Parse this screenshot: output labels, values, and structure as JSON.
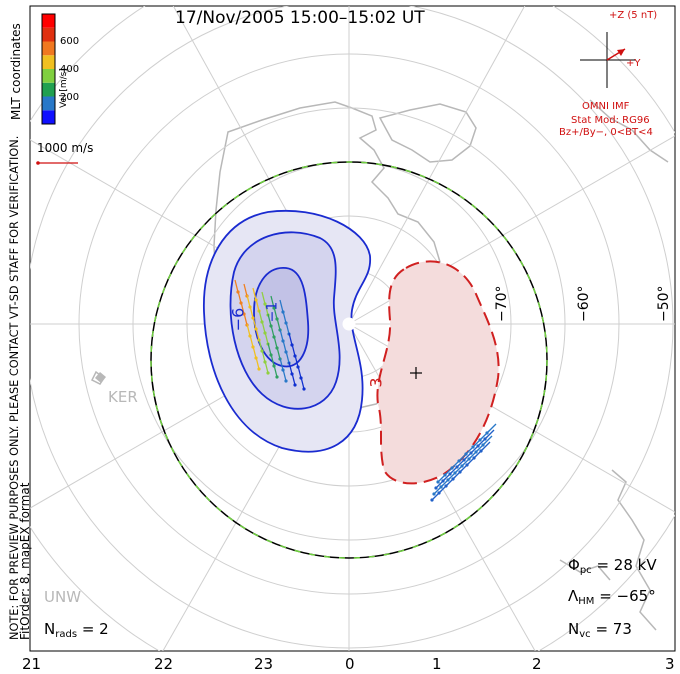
{
  "title": "17/Nov/2005 15:00–15:02 UT",
  "coords_label": "MLT coordinates",
  "colorbar": {
    "label": "Vel [m/s]",
    "ticks": [
      "600",
      "400",
      "200"
    ],
    "colors": [
      "#1010ff",
      "#2878c8",
      "#20a050",
      "#80d040",
      "#f0c020",
      "#f07820",
      "#e03010",
      "#ff0000"
    ]
  },
  "velocity_scale": "1000 m/s",
  "imf": {
    "z_label": "+Z (5 nT)",
    "y_label": "+Y",
    "source": "OMNI IMF",
    "stat_mod": "Stat Mod: RG96",
    "conditions": "Bz+/By−, 0<BT<4"
  },
  "lat_labels": [
    "−70°",
    "−60°",
    "−50°"
  ],
  "hour_labels": [
    "21",
    "22",
    "23",
    "0",
    "1",
    "2",
    "3"
  ],
  "stations": [
    "KER",
    "UNW"
  ],
  "contour_labels": {
    "negative_outer": "−6",
    "negative_inner": "−1",
    "positive": "3"
  },
  "stats": {
    "phi_label": "Φ",
    "phi_sub": "pc",
    "phi_value": "= 28 kV",
    "lambda_label": "Λ",
    "lambda_sub": "HM",
    "lambda_value": "= −65°",
    "nvc_label": "N",
    "nvc_sub": "vc",
    "nvc_value": "= 73",
    "nrads_label": "N",
    "nrads_sub": "rads",
    "nrads_value": "= 2"
  },
  "notes": {
    "preview": "NOTE: FOR PREVIEW PURPOSES ONLY. PLEASE CONTACT VT-SD STAFF FOR VERIFICATION.",
    "fit": "FitOrder: 8, mapEX format"
  }
}
